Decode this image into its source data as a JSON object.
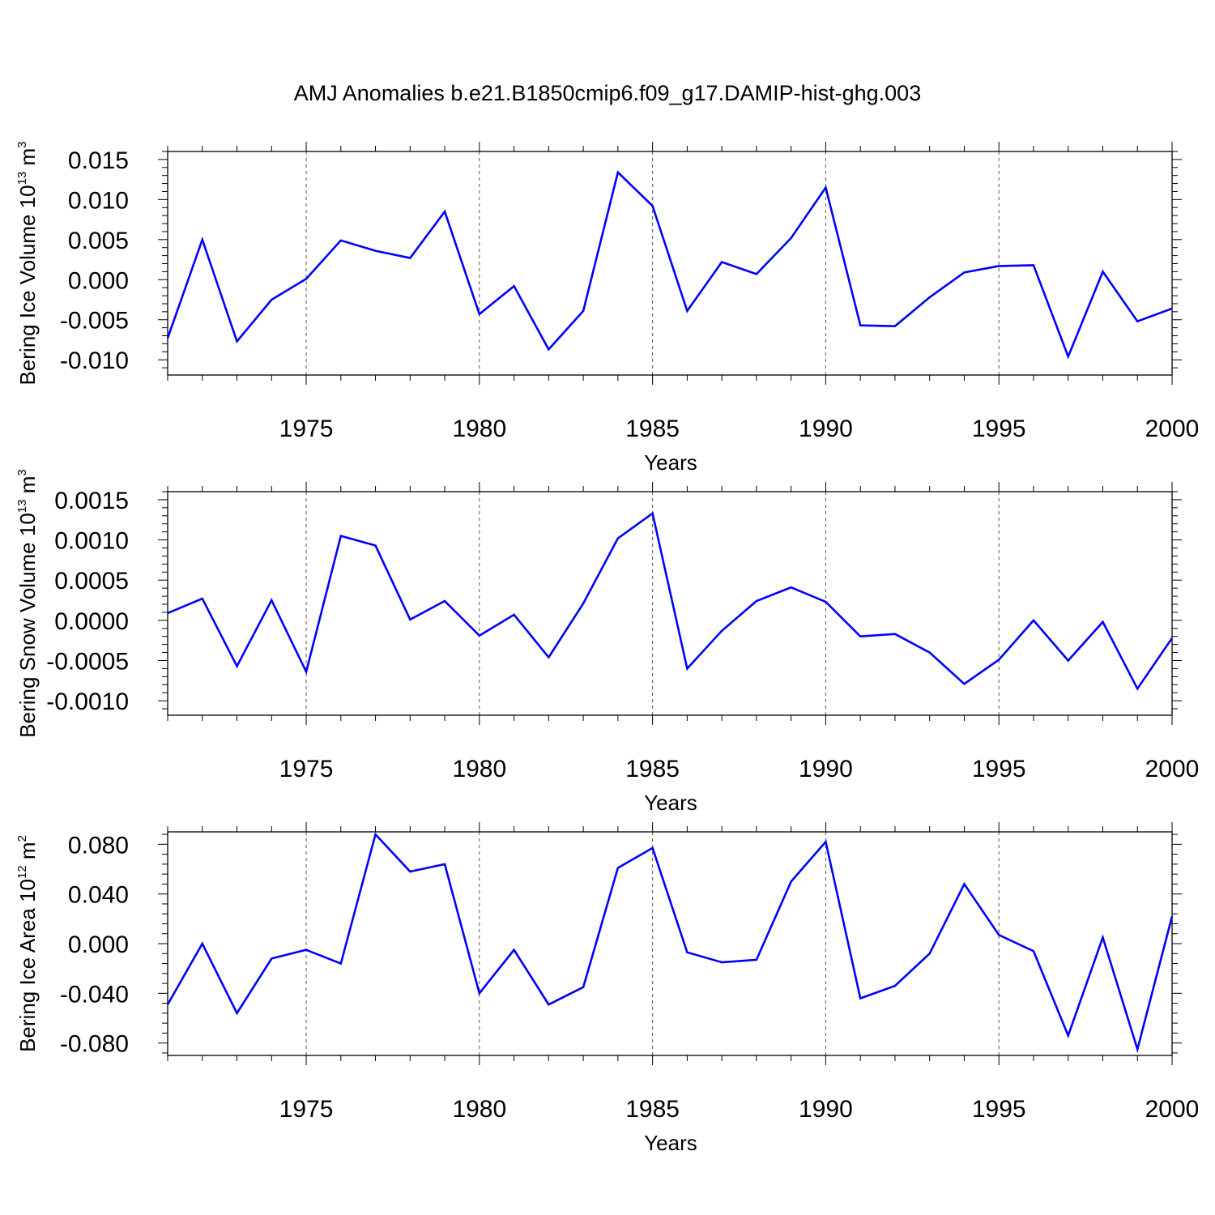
{
  "figure_title": "AMJ Anomalies b.e21.B1850cmip6.f09_g17.DAMIP-hist-ghg.003",
  "chart_data": [
    {
      "type": "line",
      "xlabel": "Years",
      "ylabel": {
        "main": "Bering Ice Volume 10",
        "sup": "13",
        "mid": " m",
        "sup2": "3"
      },
      "xlim": [
        1971,
        2000
      ],
      "ylim": [
        -0.0119,
        0.016
      ],
      "xticks": [
        1975,
        1980,
        1985,
        1990,
        1995,
        2000
      ],
      "yticks": [
        -0.01,
        -0.005,
        0.0,
        0.005,
        0.01,
        0.015
      ],
      "ytick_labels": [
        "-0.010",
        "-0.005",
        "0.000",
        "0.005",
        "0.010",
        "0.015"
      ],
      "grid": "vertical dashed at major x ticks",
      "color": "#0000ff",
      "x": [
        1971,
        1972,
        1973,
        1974,
        1975,
        1976,
        1977,
        1978,
        1979,
        1980,
        1981,
        1982,
        1983,
        1984,
        1985,
        1986,
        1987,
        1988,
        1989,
        1990,
        1991,
        1992,
        1993,
        1994,
        1995,
        1996,
        1997,
        1998,
        1999,
        2000
      ],
      "values": [
        -0.0073,
        0.005,
        -0.0077,
        -0.0025,
        0.0001,
        0.0049,
        0.0036,
        0.0027,
        0.0085,
        -0.0043,
        -0.0008,
        -0.0087,
        -0.0039,
        0.0134,
        0.0092,
        -0.0039,
        0.0022,
        0.0007,
        0.0052,
        0.0115,
        -0.0057,
        -0.0058,
        -0.0022,
        0.0009,
        0.0017,
        0.0018,
        -0.0096,
        0.001,
        -0.0052,
        -0.0036
      ]
    },
    {
      "type": "line",
      "xlabel": "Years",
      "ylabel": {
        "main": "Bering Snow Volume 10",
        "sup": "13",
        "mid": " m",
        "sup2": "3"
      },
      "xlim": [
        1971,
        2000
      ],
      "ylim": [
        -0.00118,
        0.0016
      ],
      "xticks": [
        1975,
        1980,
        1985,
        1990,
        1995,
        2000
      ],
      "yticks": [
        -0.001,
        -0.0005,
        0.0,
        0.0005,
        0.001,
        0.0015
      ],
      "ytick_labels": [
        "-0.0010",
        "-0.0005",
        "0.0000",
        "0.0005",
        "0.0010",
        "0.0015"
      ],
      "grid": "vertical dashed at major x ticks",
      "color": "#0000ff",
      "x": [
        1971,
        1972,
        1973,
        1974,
        1975,
        1976,
        1977,
        1978,
        1979,
        1980,
        1981,
        1982,
        1983,
        1984,
        1985,
        1986,
        1987,
        1988,
        1989,
        1990,
        1991,
        1992,
        1993,
        1994,
        1995,
        1996,
        1997,
        1998,
        1999,
        2000
      ],
      "values": [
        9e-05,
        0.00027,
        -0.00057,
        0.00025,
        -0.00064,
        0.00105,
        0.00093,
        1e-05,
        0.00024,
        -0.00019,
        7e-05,
        -0.00046,
        0.00021,
        0.00102,
        0.00133,
        -0.0006,
        -0.00013,
        0.00024,
        0.00041,
        0.00023,
        -0.0002,
        -0.00017,
        -0.0004,
        -0.00079,
        -0.00049,
        0.0,
        -0.0005,
        -2e-05,
        -0.00085,
        -0.00022
      ]
    },
    {
      "type": "line",
      "xlabel": "Years",
      "ylabel": {
        "main": "Bering Ice Area 10",
        "sup": "12",
        "mid": " m",
        "sup2": "2"
      },
      "xlim": [
        1971,
        2000
      ],
      "ylim": [
        -0.09,
        0.09
      ],
      "xticks": [
        1975,
        1980,
        1985,
        1990,
        1995,
        2000
      ],
      "yticks": [
        -0.08,
        -0.04,
        0.0,
        0.04,
        0.08
      ],
      "ytick_labels": [
        "-0.080",
        "-0.040",
        "0.000",
        "0.040",
        "0.080"
      ],
      "grid": "vertical dashed at major x ticks",
      "color": "#0000ff",
      "x": [
        1971,
        1972,
        1973,
        1974,
        1975,
        1976,
        1977,
        1978,
        1979,
        1980,
        1981,
        1982,
        1983,
        1984,
        1985,
        1986,
        1987,
        1988,
        1989,
        1990,
        1991,
        1992,
        1993,
        1994,
        1995,
        1996,
        1997,
        1998,
        1999,
        2000
      ],
      "values": [
        -0.049,
        0.0,
        -0.056,
        -0.012,
        -0.005,
        -0.016,
        0.088,
        0.058,
        0.064,
        -0.04,
        -0.005,
        -0.049,
        -0.035,
        0.061,
        0.077,
        -0.007,
        -0.015,
        -0.013,
        0.05,
        0.082,
        -0.044,
        -0.034,
        -0.008,
        0.048,
        0.007,
        -0.006,
        -0.074,
        0.005,
        -0.085,
        0.022
      ]
    }
  ]
}
